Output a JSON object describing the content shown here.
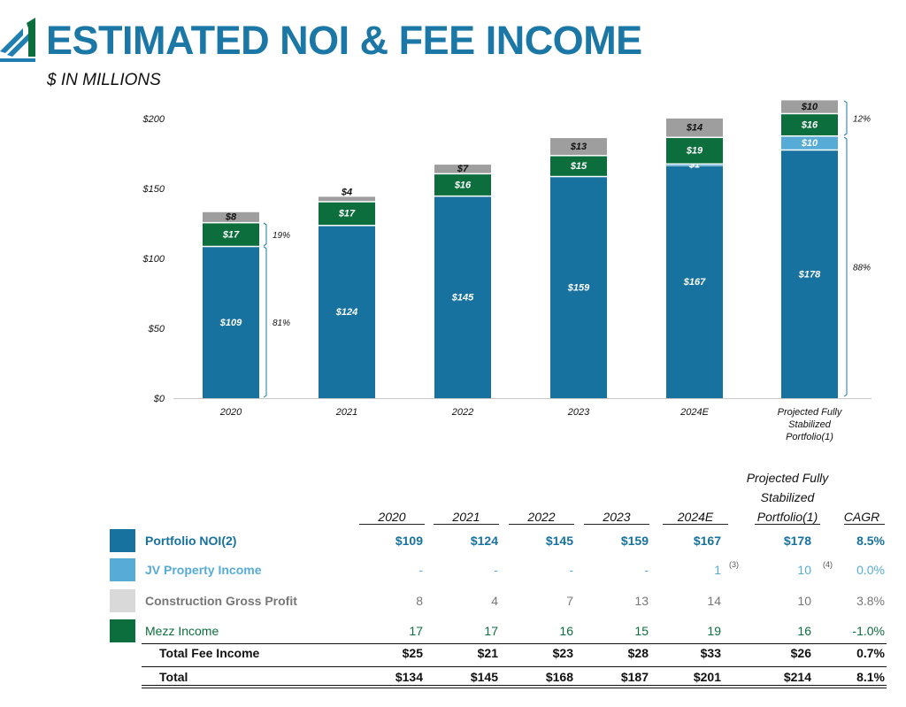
{
  "header": {
    "title": "ESTIMATED NOI & FEE INCOME",
    "subtitle": "$ IN MILLIONS"
  },
  "colors": {
    "title": "#1a77a6",
    "portfolio_noi": "#17729f",
    "jv_property_income": "#56acd7",
    "construction_gross_profit": "#9e9e9e",
    "mezz_income": "#0d6e3d"
  },
  "chart_data": {
    "type": "bar",
    "stacked": true,
    "categories": [
      "2020",
      "2021",
      "2022",
      "2023",
      "2024E",
      "Projected Fully Stabilized Portfolio(1)"
    ],
    "category_lines": [
      [
        "2020"
      ],
      [
        "2021"
      ],
      [
        "2022"
      ],
      [
        "2023"
      ],
      [
        "2024E"
      ],
      [
        "Projected Fully",
        "Stabilized",
        "Portfolio(1)"
      ]
    ],
    "series": [
      {
        "name": "Portfolio NOI",
        "values": [
          109,
          124,
          145,
          159,
          167,
          178
        ],
        "labels": [
          "$109",
          "$124",
          "$145",
          "$159",
          "$167",
          "$178"
        ]
      },
      {
        "name": "JV Property Income",
        "values": [
          0,
          0,
          0,
          0,
          1,
          10
        ],
        "labels": [
          "",
          "",
          "",
          "",
          "$1",
          "$10"
        ]
      },
      {
        "name": "Mezz Income",
        "values": [
          17,
          17,
          16,
          15,
          19,
          16
        ],
        "labels": [
          "$17",
          "$17",
          "$16",
          "$15",
          "$19",
          "$16"
        ]
      },
      {
        "name": "Construction Gross Profit",
        "values": [
          8,
          4,
          7,
          13,
          14,
          10
        ],
        "labels": [
          "$8",
          "$4",
          "$7",
          "$13",
          "$14",
          "$10"
        ]
      }
    ],
    "ylim": [
      0,
      200
    ],
    "yticks": [
      0,
      50,
      100,
      150,
      200
    ],
    "ytick_labels": [
      "$0",
      "$50",
      "$100",
      "$150",
      "$200"
    ],
    "annotations": [
      {
        "category": "2020",
        "portion": "fee income",
        "text": "19%"
      },
      {
        "category": "2020",
        "portion": "portfolio NOI",
        "text": "81%"
      },
      {
        "category": "Projected Fully Stabilized Portfolio(1)",
        "portion": "fee income",
        "text": "12%"
      },
      {
        "category": "Projected Fully Stabilized Portfolio(1)",
        "portion": "NOI incl. JV",
        "text": "88%"
      }
    ],
    "xlabel": "",
    "ylabel": ""
  },
  "table": {
    "header_top": [
      "Projected Fully",
      "Stabilized"
    ],
    "columns": [
      "2020",
      "2021",
      "2022",
      "2023",
      "2024E",
      "Portfolio(1)"
    ],
    "cagr_header": "CAGR",
    "rows": [
      {
        "label": "Portfolio NOI(2)",
        "values": [
          "$109",
          "$124",
          "$145",
          "$159",
          "$167",
          "$178"
        ],
        "cagr": "8.5%"
      },
      {
        "label": "JV Property Income",
        "values": [
          "-",
          "-",
          "-",
          "-",
          "1",
          "10"
        ],
        "cagr": "0.0%",
        "notes": [
          "(3)",
          "(4)"
        ]
      },
      {
        "label": "Construction Gross Profit",
        "values": [
          "8",
          "4",
          "7",
          "13",
          "14",
          "10"
        ],
        "cagr": "3.8%"
      },
      {
        "label": "Mezz Income",
        "values": [
          "17",
          "17",
          "16",
          "15",
          "19",
          "16"
        ],
        "cagr": "-1.0%"
      },
      {
        "label": "Total Fee Income",
        "values": [
          "$25",
          "$21",
          "$23",
          "$28",
          "$33",
          "$26"
        ],
        "cagr": "0.7%"
      },
      {
        "label": "Total",
        "values": [
          "$134",
          "$145",
          "$168",
          "$187",
          "$201",
          "$214"
        ],
        "cagr": "8.1%"
      }
    ]
  }
}
